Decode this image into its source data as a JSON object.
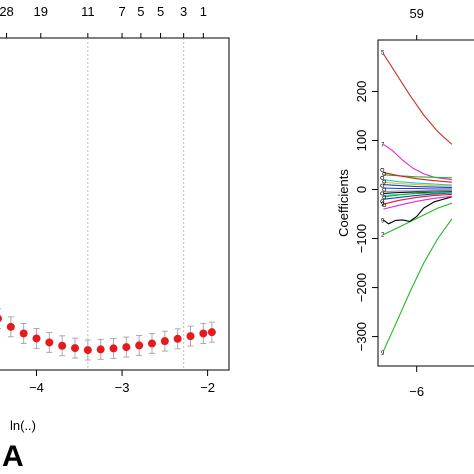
{
  "chart_data": [
    {
      "type": "line",
      "panel_label": "A",
      "xlabel": "ln(..)",
      "xlim": [
        -4.45,
        -1.75
      ],
      "ylim": [
        0,
        1
      ],
      "x_ticks": [
        -4,
        -3,
        -2
      ],
      "x_tick_labels": [
        "−4",
        "−3",
        "−2"
      ],
      "top_axis": {
        "labels": [
          "28",
          "19",
          "11",
          "7",
          "5",
          "5",
          "3",
          "1"
        ],
        "positions": [
          -4.35,
          -3.95,
          -3.4,
          -3.0,
          -2.78,
          -2.55,
          -2.28,
          -2.05
        ]
      },
      "reference_lines": [
        -3.4,
        -2.28
      ],
      "grid": false,
      "series": [
        {
          "color": "#e41a1c",
          "x": [
            -4.45,
            -4.3,
            -4.15,
            -4.0,
            -3.85,
            -3.7,
            -3.55,
            -3.4,
            -3.25,
            -3.1,
            -2.95,
            -2.8,
            -2.65,
            -2.5,
            -2.35,
            -2.2,
            -2.05,
            -1.95
          ],
          "values": [
            0.155,
            0.13,
            0.11,
            0.095,
            0.083,
            0.073,
            0.066,
            0.06,
            0.062,
            0.065,
            0.069,
            0.074,
            0.08,
            0.087,
            0.094,
            0.102,
            0.11,
            0.114
          ],
          "error": [
            0.03,
            0.03,
            0.03,
            0.03,
            0.03,
            0.03,
            0.03,
            0.03,
            0.03,
            0.03,
            0.03,
            0.03,
            0.03,
            0.03,
            0.03,
            0.03,
            0.03,
            0.03
          ]
        }
      ]
    },
    {
      "type": "line",
      "ylabel": "Coefficients",
      "xlim": [
        -7.1,
        -4.2
      ],
      "ylim": [
        -360,
        305
      ],
      "y_ticks": [
        -300,
        -200,
        -100,
        0,
        100,
        200
      ],
      "y_tick_labels": [
        "−300",
        "−200",
        "−100",
        "0",
        "100",
        "200"
      ],
      "x_ticks": [
        -6
      ],
      "x_tick_labels": [
        "−6"
      ],
      "top_axis": {
        "labels": [
          "59"
        ],
        "positions": [
          -6.0
        ]
      },
      "left_margin_labels": [
        {
          "text": "5",
          "y": 280
        },
        {
          "text": "7",
          "y": 92
        },
        {
          "text": "9",
          "y": -30
        },
        {
          "text": "9",
          "y": -63
        },
        {
          "text": "2",
          "y": -92
        },
        {
          "text": "9",
          "y": -333
        }
      ],
      "grid": false,
      "series": [
        {
          "color": "#c8322e",
          "x": [
            -6.95,
            -6.6,
            -6.2,
            -5.8,
            -5.4,
            -5.0
          ],
          "values": [
            277,
            238,
            193,
            152,
            118,
            92
          ]
        },
        {
          "color": "#e02ad8",
          "x": [
            -6.95,
            -6.7,
            -6.4,
            -6.1,
            -5.8,
            -5.5,
            -5.0
          ],
          "values": [
            92,
            80,
            60,
            43,
            32,
            25,
            20
          ]
        },
        {
          "color": "#22b822",
          "x": [
            -6.95,
            -6.6,
            -6.2,
            -5.8,
            -5.4,
            -5.0
          ],
          "values": [
            -330,
            -275,
            -210,
            -150,
            -100,
            -60
          ]
        },
        {
          "color": "#22b822",
          "x": [
            -6.95,
            -6.6,
            -6.2,
            -5.8,
            -5.4,
            -5.0
          ],
          "values": [
            -92,
            -80,
            -66,
            -52,
            -38,
            -28
          ]
        },
        {
          "color": "#22b822",
          "x": [
            -6.95,
            -6.5,
            -6.0,
            -5.5,
            -5.0
          ],
          "values": [
            30,
            28,
            26,
            25,
            24
          ]
        },
        {
          "color": "#000000",
          "x": [
            -6.95,
            -6.8,
            -6.6,
            -6.4,
            -6.2,
            -6.0,
            -5.8,
            -5.5,
            -5.0
          ],
          "values": [
            -62,
            -70,
            -63,
            -62,
            -65,
            -55,
            -38,
            -25,
            -15
          ]
        },
        {
          "color": "#000000",
          "x": [
            -6.95,
            -6.5,
            -6.0,
            -5.5,
            -5.0
          ],
          "values": [
            -8,
            -6,
            -5,
            -5,
            -4
          ]
        },
        {
          "color": "#1c3fd8",
          "x": [
            -6.95,
            -6.5,
            -6.0,
            -5.5,
            -5.0
          ],
          "values": [
            10,
            8,
            6,
            5,
            4
          ]
        },
        {
          "color": "#1c3fd8",
          "x": [
            -6.95,
            -6.5,
            -6.0,
            -5.5,
            -5.0
          ],
          "values": [
            -20,
            -16,
            -12,
            -9,
            -7
          ]
        },
        {
          "color": "#22c8d8",
          "x": [
            -6.95,
            -6.5,
            -6.0,
            -5.5,
            -5.0
          ],
          "values": [
            20,
            16,
            13,
            11,
            9
          ]
        },
        {
          "color": "#22c8d8",
          "x": [
            -6.95,
            -6.5,
            -6.0,
            -5.5,
            -5.0
          ],
          "values": [
            -12,
            -10,
            -8,
            -7,
            -6
          ]
        },
        {
          "color": "#e41a1c",
          "x": [
            -6.95,
            -6.5,
            -6.0,
            -5.5,
            -5.0
          ],
          "values": [
            35,
            28,
            22,
            18,
            15
          ]
        },
        {
          "color": "#e41a1c",
          "x": [
            -6.95,
            -6.5,
            -6.0,
            -5.5,
            -5.0
          ],
          "values": [
            -30,
            -22,
            -16,
            -12,
            -10
          ]
        },
        {
          "color": "#e02ad8",
          "x": [
            -6.95,
            -6.5,
            -6.0,
            -5.5,
            -5.0
          ],
          "values": [
            -40,
            -32,
            -24,
            -18,
            -14
          ]
        },
        {
          "color": "#d8c81c",
          "x": [
            -6.95,
            -6.5,
            -6.0,
            -5.5,
            -5.0
          ],
          "values": [
            15,
            12,
            10,
            8,
            7
          ]
        },
        {
          "color": "#888888",
          "x": [
            -6.95,
            -6.5,
            -6.0,
            -5.5,
            -5.0
          ],
          "values": [
            -4,
            -3,
            -3,
            -2,
            -2
          ]
        },
        {
          "color": "#1c3fd8",
          "x": [
            -6.95,
            -6.5,
            -6.0,
            -5.5,
            -5.0
          ],
          "values": [
            3,
            2,
            2,
            1,
            1
          ]
        },
        {
          "color": "#22b822",
          "x": [
            -6.95,
            -6.5,
            -6.0,
            -5.5,
            -5.0
          ],
          "values": [
            -15,
            -11,
            -8,
            -6,
            -5
          ]
        }
      ]
    }
  ]
}
